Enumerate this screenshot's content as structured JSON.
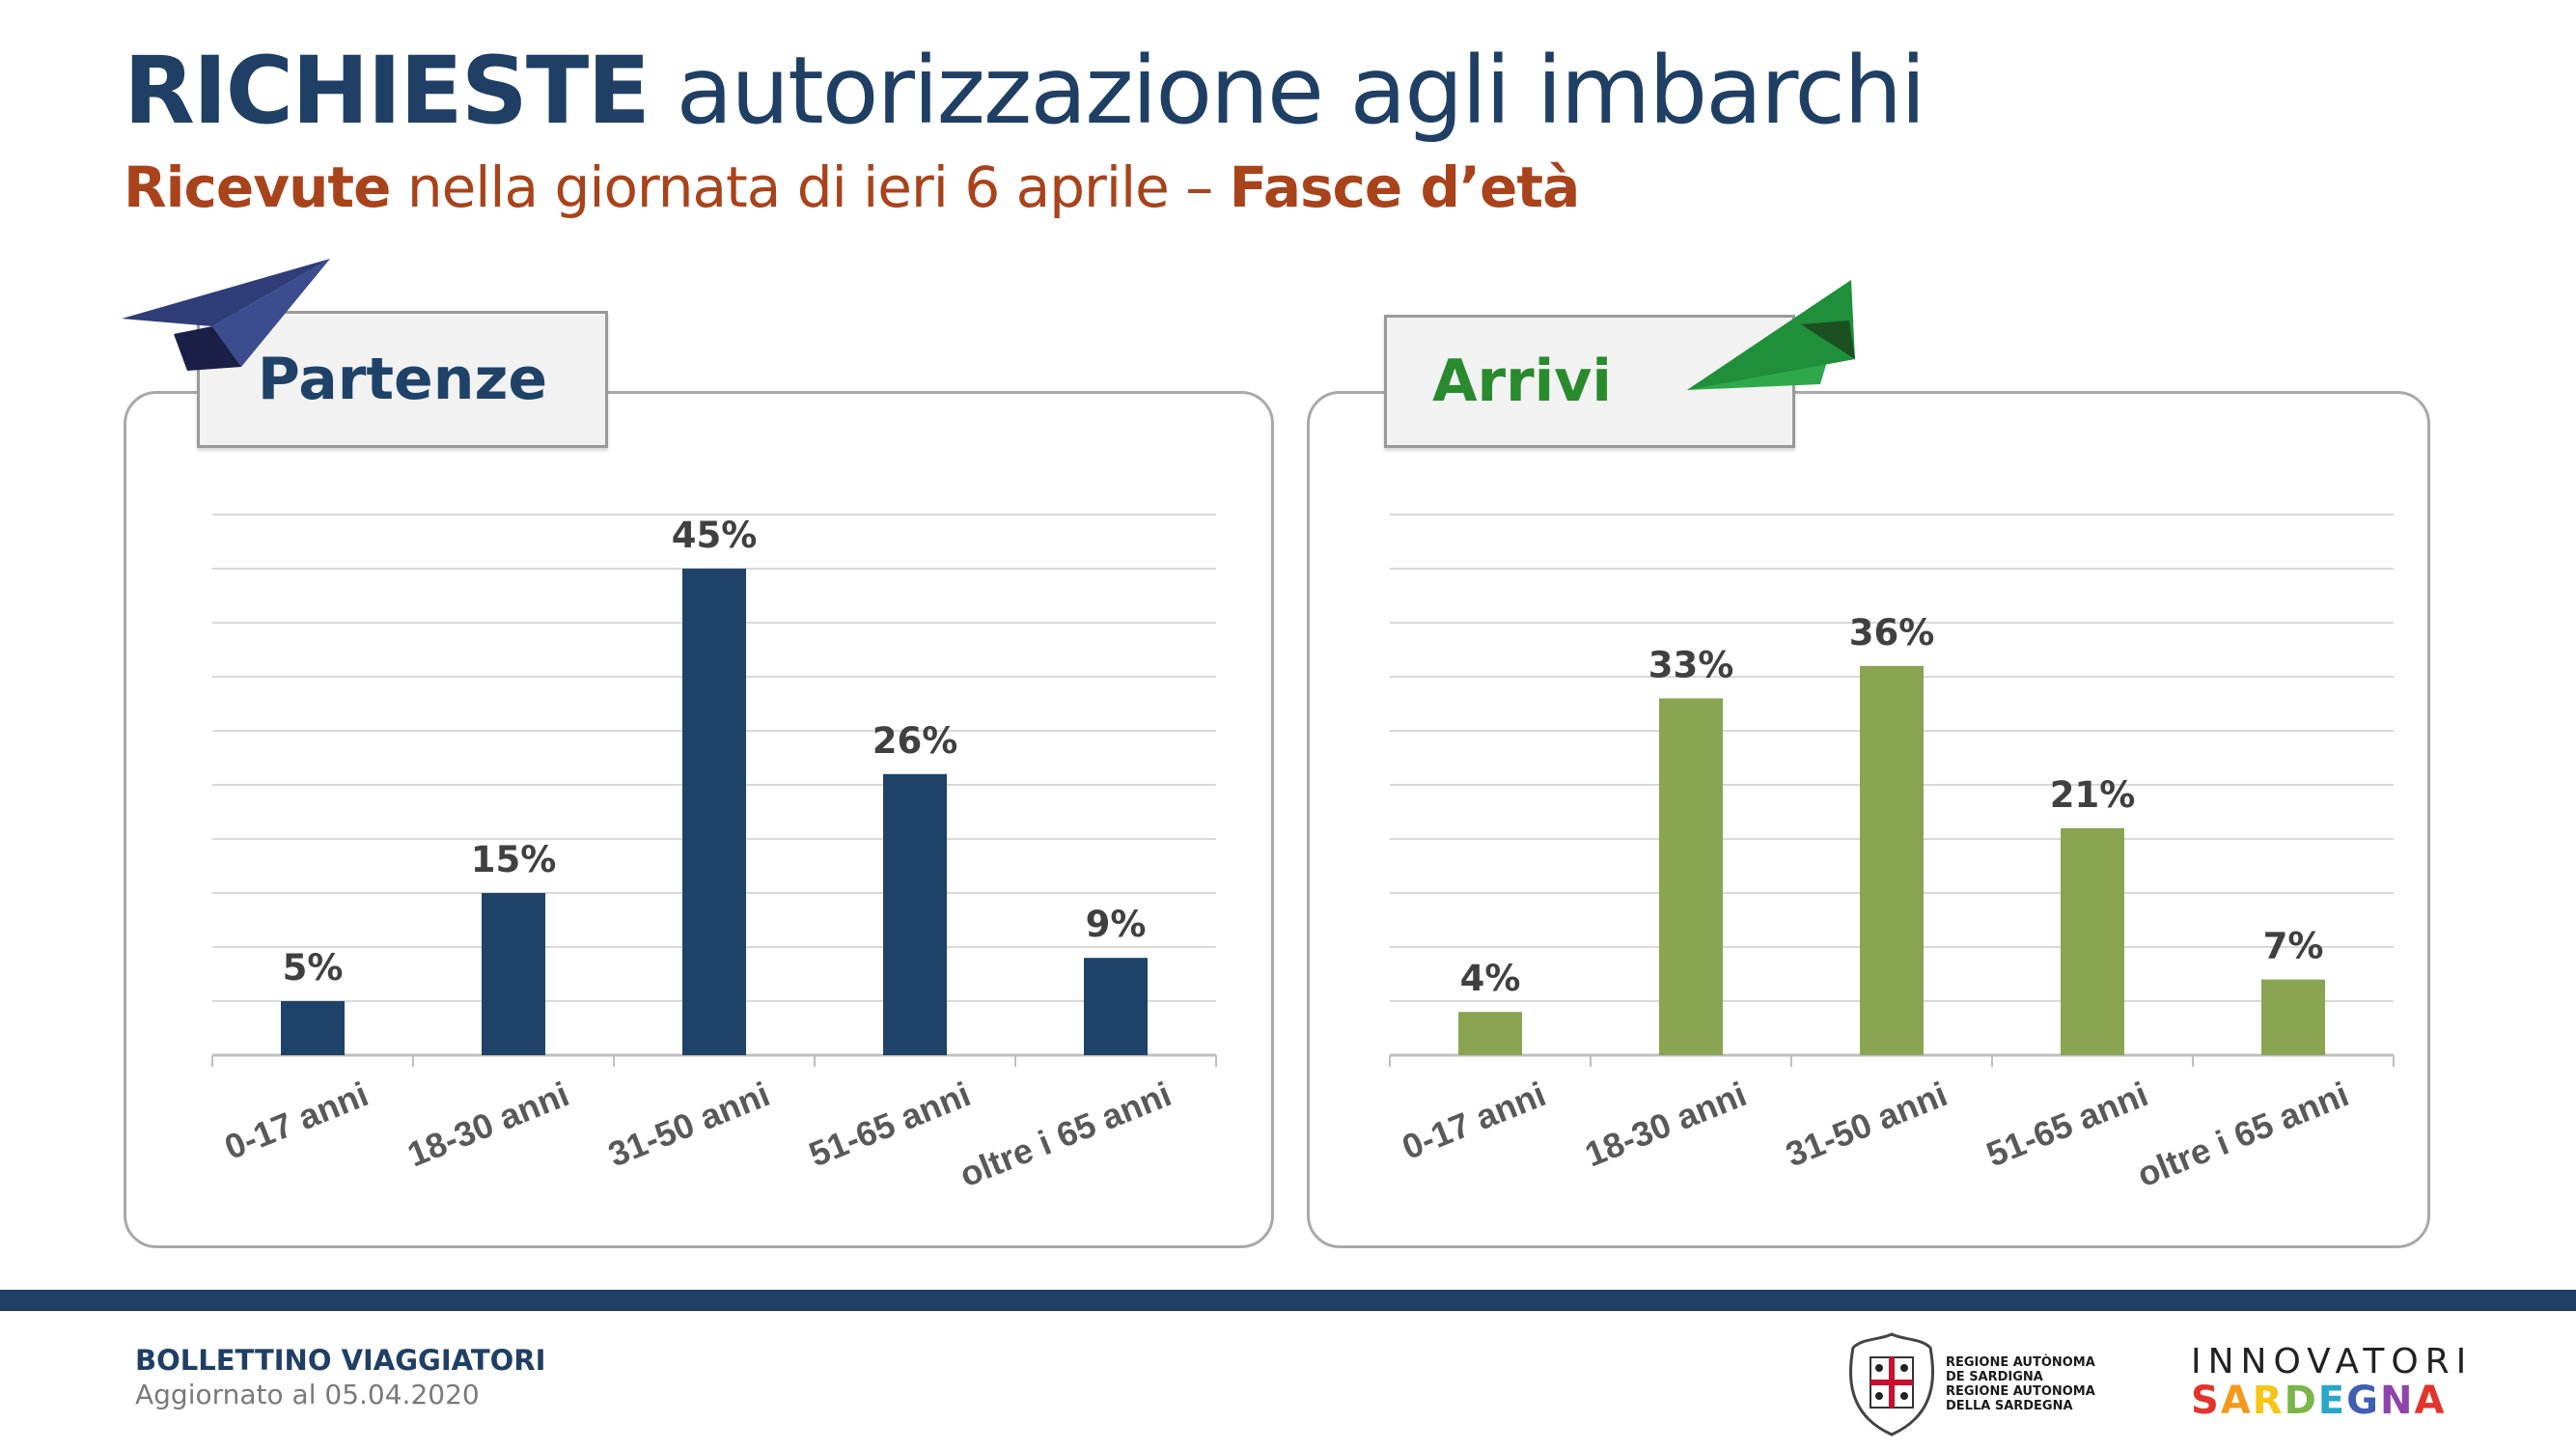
{
  "header": {
    "title_bold": "RICHIESTE",
    "title_rest": " autorizzazione agli imbarchi",
    "subtitle_bold1": "Ricevute",
    "subtitle_mid": " nella giornata di ieri 6 aprile – ",
    "subtitle_bold2": "Fasce d’età"
  },
  "colors": {
    "navy": "#1f4268",
    "green_bar": "#8aa552",
    "green_tab": "#2a8a2e",
    "accent": "#a8431b"
  },
  "panels": {
    "left_tab": "Partenze",
    "right_tab": "Arrivi",
    "left_icon": "paper-plane-navy-icon",
    "right_icon": "paper-plane-green-icon"
  },
  "chart_data": [
    {
      "type": "bar",
      "categories": [
        "0-17 anni",
        "18-30 anni",
        "31-50 anni",
        "51-65 anni",
        "oltre i 65 anni"
      ],
      "values": [
        5,
        15,
        45,
        26,
        9
      ],
      "labels": [
        "5%",
        "15%",
        "45%",
        "26%",
        "9%"
      ],
      "title": "Partenze",
      "ylim": [
        0,
        50
      ],
      "grid": true,
      "color": "#1f4268"
    },
    {
      "type": "bar",
      "categories": [
        "0-17 anni",
        "18-30 anni",
        "31-50 anni",
        "51-65 anni",
        "oltre i 65 anni"
      ],
      "values": [
        4,
        33,
        36,
        21,
        7
      ],
      "labels": [
        "4%",
        "33%",
        "36%",
        "21%",
        "7%"
      ],
      "title": "Arrivi",
      "ylim": [
        0,
        50
      ],
      "grid": true,
      "color": "#8aa552"
    }
  ],
  "footer": {
    "title": "BOLLETTINO VIAGGIATORI",
    "updated": "Aggiornato al 05.04.2020",
    "region_line1": "REGIONE AUTÒNOMA",
    "region_line2": "DE SARDIGNA",
    "region_line3": "REGIONE AUTONOMA",
    "region_line4": "DELLA SARDEGNA",
    "seal_icon": "sardinia-coat-of-arms-icon",
    "brand_top": "INNOVATORI",
    "brand_bottom": [
      "S",
      "A",
      "R",
      "D",
      "E",
      "G",
      "N",
      "A"
    ],
    "brand_colors": [
      "#e2342b",
      "#f39a1e",
      "#f5c518",
      "#7ab648",
      "#2aa7c9",
      "#3f5fb0",
      "#8e44ad",
      "#e2342b"
    ]
  }
}
